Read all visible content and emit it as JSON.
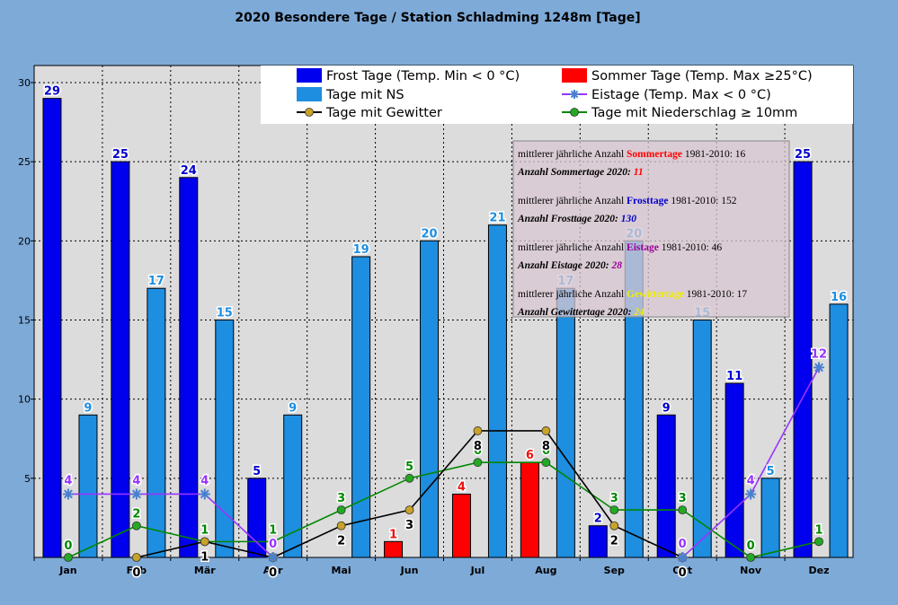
{
  "chart_data": {
    "type": "bar",
    "title": "2020 Besondere Tage / Station Schladming 1248m [Tage]",
    "categories": [
      "Jan",
      "Feb",
      "Mär",
      "Apr",
      "Mai",
      "Jun",
      "Jul",
      "Aug",
      "Sep",
      "Okt",
      "Nov",
      "Dez"
    ],
    "ylim": [
      0,
      30
    ],
    "yticks": [
      5,
      10,
      15,
      20,
      25,
      30
    ],
    "grid": true,
    "legend_position": "top",
    "bar_series": [
      {
        "name": "Frost Tage (Temp. Min < 0 °C)",
        "color": "#0000ee",
        "label_color": "#0000cc",
        "values": [
          29,
          25,
          24,
          5,
          0,
          0,
          0,
          0,
          2,
          9,
          11,
          25
        ]
      },
      {
        "name": "Tage mit NS",
        "color": "#1e8ee0",
        "label_color": "#1e8ee0",
        "values": [
          9,
          17,
          15,
          9,
          19,
          20,
          21,
          17,
          20,
          15,
          5,
          16
        ]
      },
      {
        "name": "Sommer Tage (Temp. Max  ≥25°C)",
        "color": "#ff0000",
        "label_color": "#ee1111",
        "values": [
          0,
          0,
          0,
          0,
          0,
          1,
          4,
          6,
          0,
          0,
          0,
          0
        ]
      }
    ],
    "line_series": [
      {
        "name": "Eistage  (Temp. Max < 0 °C)",
        "color": "#9933ff",
        "marker": "star",
        "values": [
          4,
          4,
          4,
          0,
          null,
          null,
          null,
          null,
          null,
          0,
          4,
          12
        ]
      },
      {
        "name": "Tage mit Gewitter",
        "color": "#000000",
        "marker_color": "#c9a227",
        "marker": "circle",
        "values": [
          null,
          0,
          1,
          0,
          2,
          3,
          8,
          8,
          2,
          0,
          null,
          null
        ]
      },
      {
        "name": "Tage mit Niederschlag ≥ 10mm",
        "color": "#008800",
        "marker_color": "#22aa22",
        "marker": "circle",
        "values": [
          0,
          2,
          1,
          1,
          3,
          5,
          6,
          6,
          3,
          3,
          0,
          1
        ]
      }
    ],
    "annotation": [
      {
        "prefix": "mittlerer jährliche Anzahl ",
        "term": "Sommertage",
        "term_color": "#ff0000",
        "suffix": " 1981-2010: 16",
        "value_label": "Anzahl Sommertage 2020: ",
        "value": "11",
        "value_color": "#ff0000"
      },
      {
        "prefix": "mittlerer jährliche Anzahl ",
        "term": "Frosttage",
        "term_color": "#0000cc",
        "suffix": " 1981-2010: 152",
        "value_label": "Anzahl Frosttage 2020: ",
        "value": "130",
        "value_color": "#0000cc"
      },
      {
        "prefix": "mittlerer jährliche Anzahl ",
        "term": "Eistage",
        "term_color": "#990099",
        "suffix": " 1981-2010: 46",
        "value_label": "Anzahl Eistage 2020: ",
        "value": "28",
        "value_color": "#990099"
      },
      {
        "prefix": "mittlerer jährliche Anzahl ",
        "term": "Gewittertage",
        "term_color": "#eeee00",
        "suffix": " 1981-2010: 17",
        "value_label": "Anzahl Gewittertage 2020: ",
        "value": "24",
        "value_color": "#eeee00"
      }
    ]
  }
}
